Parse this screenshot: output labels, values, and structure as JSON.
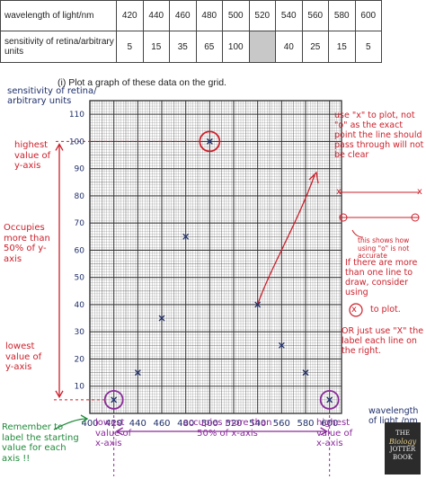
{
  "table": {
    "row1_label": "wavelength of light/nm",
    "row2_label": "sensitivity of retina/arbitrary units",
    "wavelengths": [
      "420",
      "440",
      "460",
      "480",
      "500",
      "520",
      "540",
      "560",
      "580",
      "600"
    ],
    "sensitivities": [
      "5",
      "15",
      "35",
      "65",
      "100",
      "",
      "40",
      "25",
      "15",
      "5"
    ]
  },
  "question": "(i)   Plot a graph of these data on the grid.",
  "chart_data": {
    "type": "scatter",
    "x_ticks": [
      "400",
      "420",
      "440",
      "460",
      "480",
      "500",
      "520",
      "540",
      "560",
      "580",
      "600"
    ],
    "y_ticks": [
      "10",
      "20",
      "30",
      "40",
      "50",
      "60",
      "70",
      "80",
      "90",
      "100",
      "110"
    ],
    "xlim": [
      400,
      610
    ],
    "ylim": [
      0,
      115
    ],
    "grid": true,
    "points": [
      {
        "x": 420,
        "y": 5
      },
      {
        "x": 440,
        "y": 15
      },
      {
        "x": 460,
        "y": 35
      },
      {
        "x": 480,
        "y": 65
      },
      {
        "x": 500,
        "y": 100
      },
      {
        "x": 540,
        "y": 40
      },
      {
        "x": 560,
        "y": 25
      },
      {
        "x": 580,
        "y": 15
      },
      {
        "x": 600,
        "y": 5
      }
    ],
    "ylabel": "sensitivity of retina/ arbitrary units",
    "xlabel": "wavelength of light /nm",
    "colors": {
      "grid": "#2b2b2b",
      "mark": "#1f2f6a",
      "red": "#cc1f2a",
      "green": "#1f8a3a",
      "purple": "#8a2a9a"
    }
  },
  "annotations": {
    "highest_y": "highest value of y-axis",
    "occupies_y": "Occupies more than 50% of y-axis",
    "lowest_y": "lowest value of y-axis",
    "remember": "Remember to label the starting value for each axis !!",
    "lowest_x": "lowest value of x-axis",
    "occupies_x": "occupies more than 50% of x-axis",
    "highest_x": "highest value of x-axis",
    "use_x": "use \"x\" to plot, not \"o\" as the exact point the line should pass through will not be clear",
    "this_shows": "this shows how using \"o\" is not accurate",
    "if_more": "If there are more than one line to draw, consider using",
    "to_plot": "to plot.",
    "or_just": "OR just use \"X\" the label each line on the right.",
    "x_sym": "x",
    "x_in_circle": "x"
  },
  "logo": {
    "line1": "THE",
    "line2": "Biology",
    "line3": "JOTTER",
    "line4": "BOOK"
  }
}
